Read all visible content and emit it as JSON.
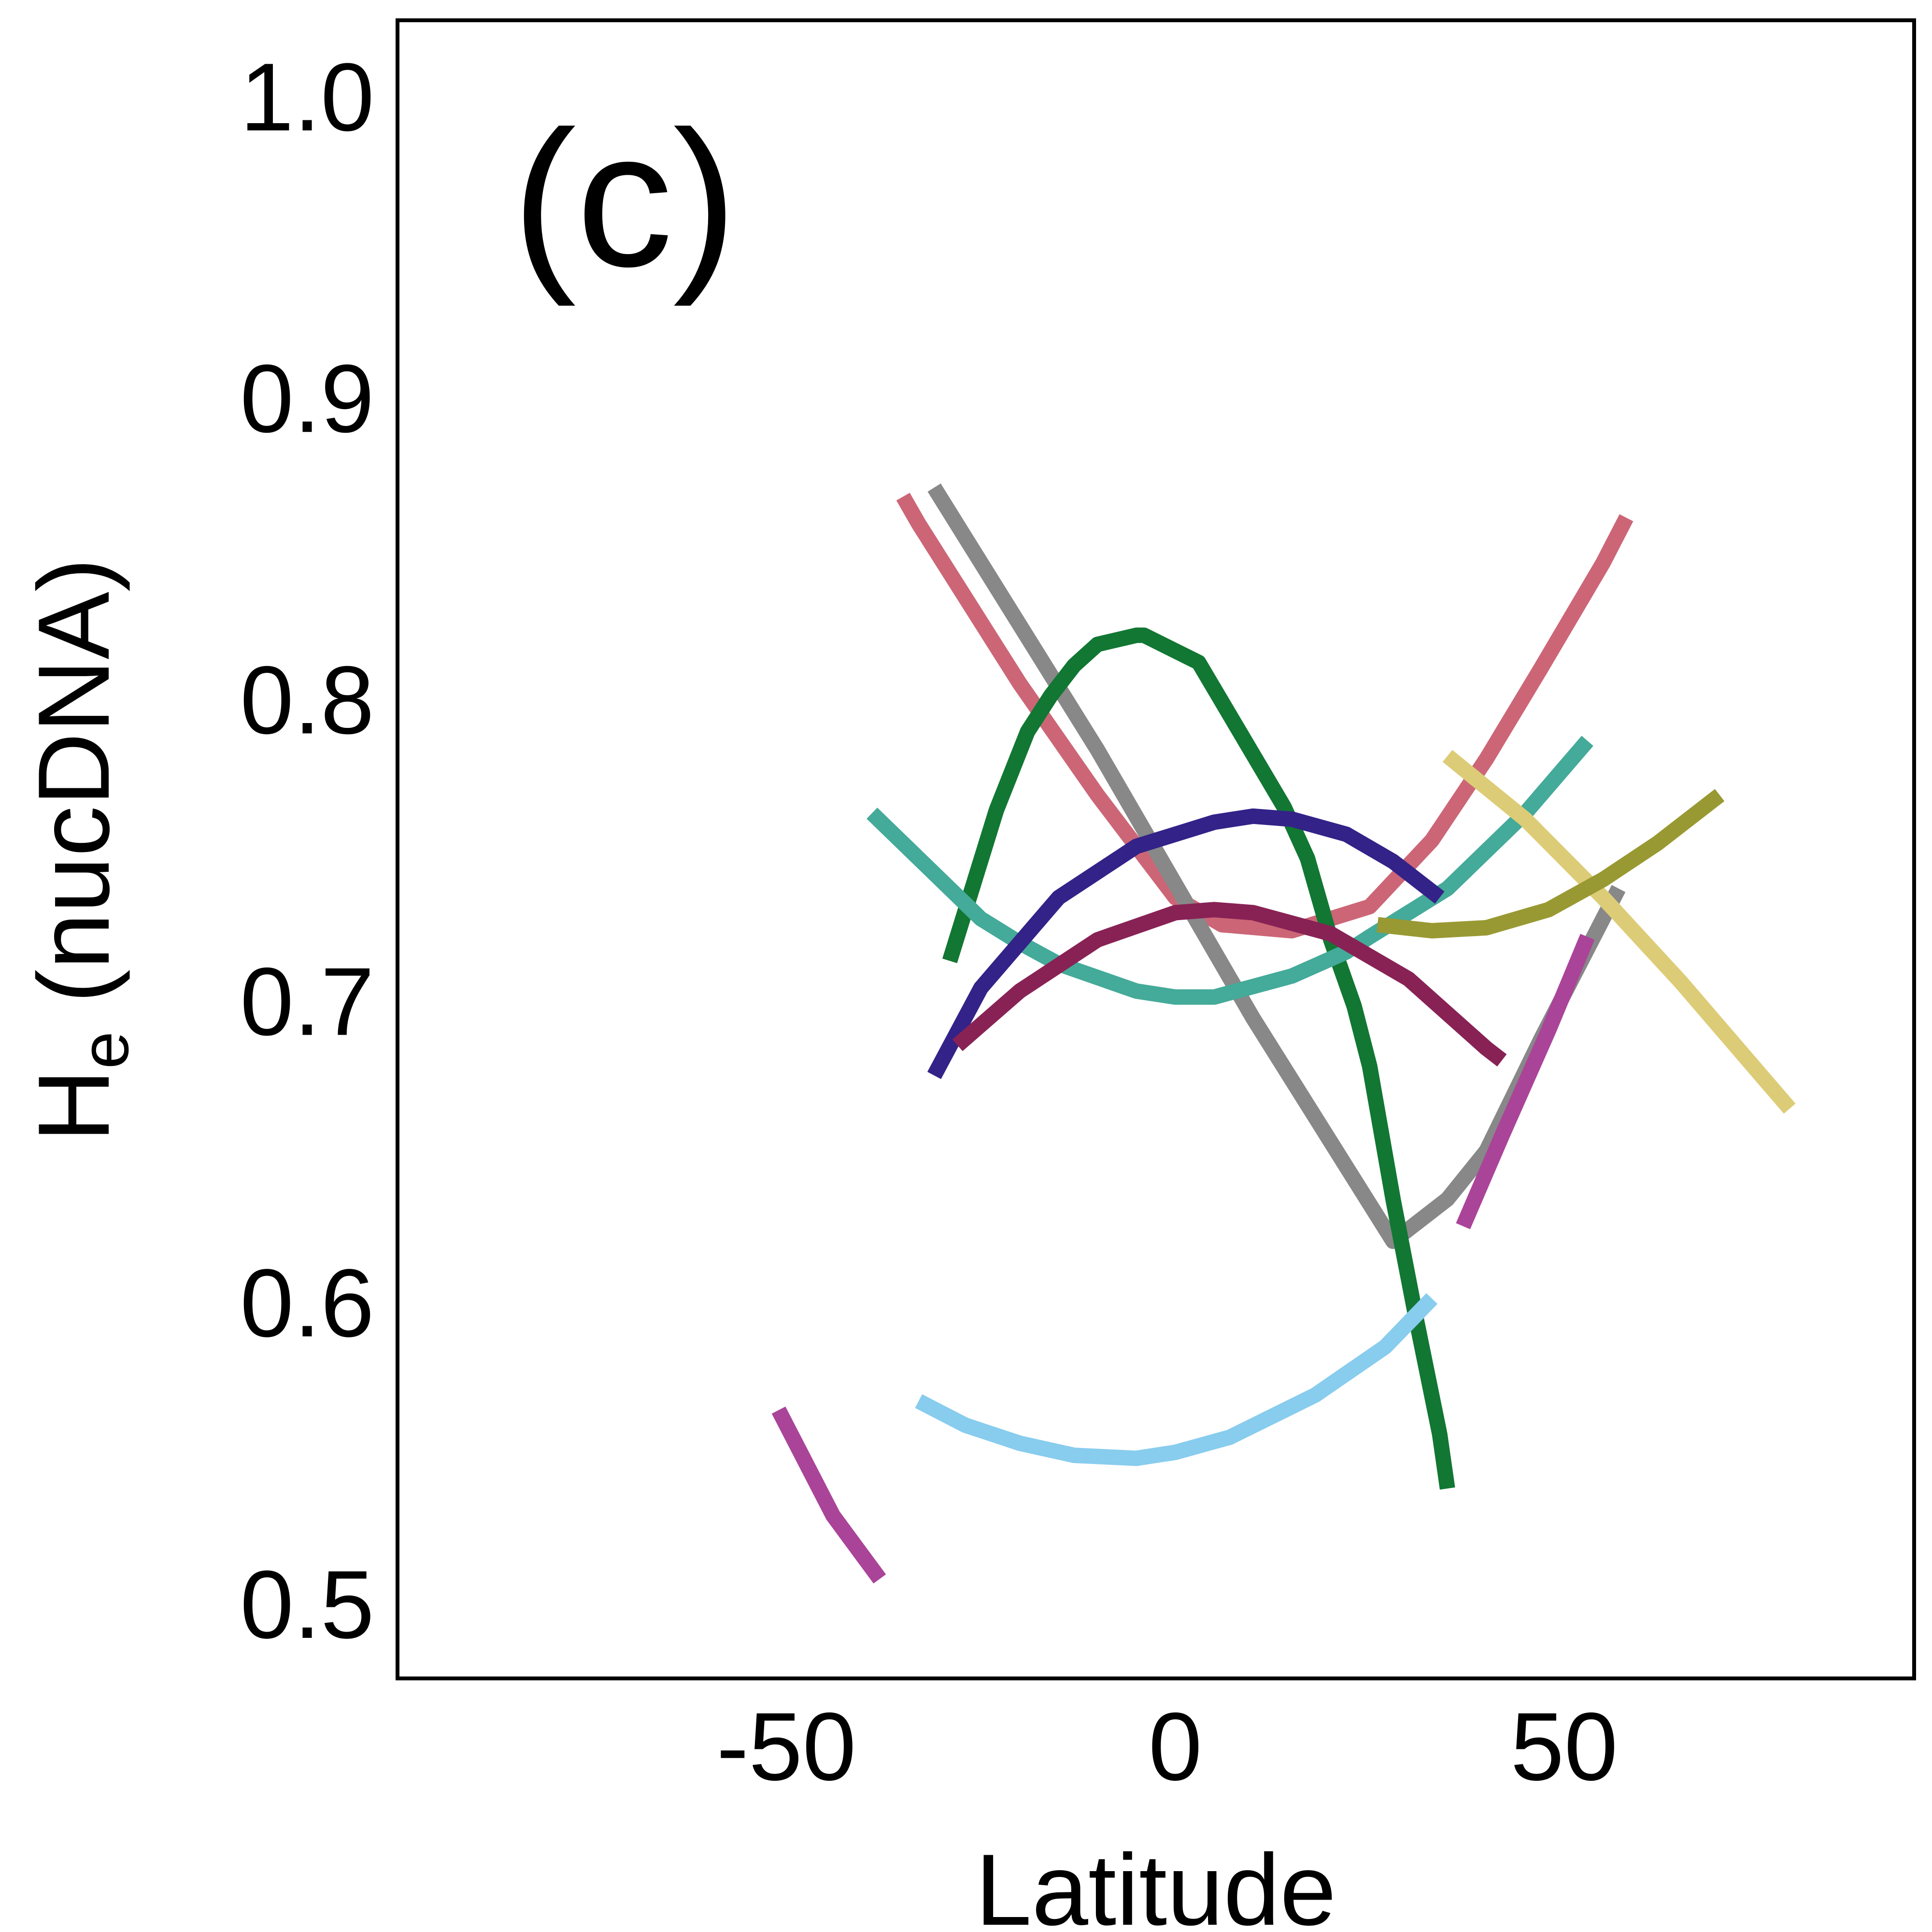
{
  "chart_data": {
    "type": "line",
    "panel_label": "(c)",
    "xlabel": "Latitude",
    "ylabel_main": "H",
    "ylabel_sub": "e",
    "ylabel_rest": " (nucDNA)",
    "xlim": [
      -100,
      95
    ],
    "ylim": [
      0.475,
      1.025
    ],
    "x_ticks": [
      -50,
      0,
      50
    ],
    "x_tick_labels": [
      "-50",
      "0",
      "50"
    ],
    "y_ticks": [
      0.5,
      0.6,
      0.7,
      0.8,
      0.9,
      1.0
    ],
    "y_tick_labels": [
      "0.5",
      "0.6",
      "0.7",
      "0.8",
      "0.9",
      "1.0"
    ],
    "grid": false,
    "series": [
      {
        "color": "#cc6677",
        "x": [
          -35,
          -33,
          -20,
          -10,
          0,
          6,
          15,
          25,
          33,
          40,
          47,
          55,
          58
        ],
        "y": [
          0.867,
          0.858,
          0.805,
          0.768,
          0.734,
          0.725,
          0.723,
          0.731,
          0.753,
          0.78,
          0.81,
          0.845,
          0.86
        ]
      },
      {
        "color": "#888888",
        "x": [
          -31,
          -10,
          10,
          28,
          30,
          35,
          40,
          47,
          57
        ],
        "y": [
          0.87,
          0.783,
          0.694,
          0.62,
          0.624,
          0.634,
          0.65,
          0.687,
          0.737
        ]
      },
      {
        "color": "#117733",
        "x": [
          -29,
          -23,
          -19,
          -16,
          -13,
          -10,
          -5,
          -4,
          3,
          14,
          17,
          20,
          23,
          25,
          28,
          31,
          34,
          35
        ],
        "y": [
          0.713,
          0.763,
          0.789,
          0.801,
          0.811,
          0.818,
          0.821,
          0.821,
          0.812,
          0.764,
          0.747,
          0.72,
          0.698,
          0.678,
          0.634,
          0.594,
          0.556,
          0.538
        ]
      },
      {
        "color": "#44aa99",
        "x": [
          -39,
          -25,
          -20,
          -15,
          -5,
          0,
          5,
          15,
          22,
          25,
          35,
          45,
          53
        ],
        "y": [
          0.762,
          0.727,
          0.719,
          0.712,
          0.703,
          0.701,
          0.701,
          0.708,
          0.716,
          0.721,
          0.737,
          0.762,
          0.786
        ]
      },
      {
        "color": "#332288",
        "x": [
          -31,
          -25,
          -15,
          -5,
          5,
          10,
          15,
          22,
          28,
          34
        ],
        "y": [
          0.675,
          0.704,
          0.734,
          0.751,
          0.759,
          0.761,
          0.76,
          0.755,
          0.746,
          0.734
        ]
      },
      {
        "color": "#882255",
        "x": [
          -28,
          -20,
          -10,
          0,
          5,
          10,
          20,
          30,
          40,
          42
        ],
        "y": [
          0.685,
          0.703,
          0.72,
          0.729,
          0.73,
          0.729,
          0.722,
          0.707,
          0.684,
          0.68
        ]
      },
      {
        "color": "#ddcc77",
        "x": [
          35,
          45,
          55,
          65,
          75,
          79
        ],
        "y": [
          0.781,
          0.76,
          0.734,
          0.706,
          0.676,
          0.664
        ]
      },
      {
        "color": "#999933",
        "x": [
          26,
          33,
          40,
          48,
          55,
          62,
          70
        ],
        "y": [
          0.725,
          0.723,
          0.724,
          0.73,
          0.74,
          0.752,
          0.768
        ]
      },
      {
        "color": "#aa4499",
        "x": [
          37,
          42,
          48,
          53
        ],
        "y": [
          0.625,
          0.655,
          0.69,
          0.721
        ]
      },
      {
        "color": "#aa4499",
        "x": [
          -51,
          -44,
          -38
        ],
        "y": [
          0.564,
          0.529,
          0.508
        ]
      },
      {
        "color": "#88ccee",
        "x": [
          -33,
          -27,
          -20,
          -13,
          -5,
          0,
          7,
          18,
          27,
          33
        ],
        "y": [
          0.567,
          0.559,
          0.553,
          0.549,
          0.548,
          0.55,
          0.555,
          0.569,
          0.585,
          0.601
        ]
      }
    ]
  }
}
